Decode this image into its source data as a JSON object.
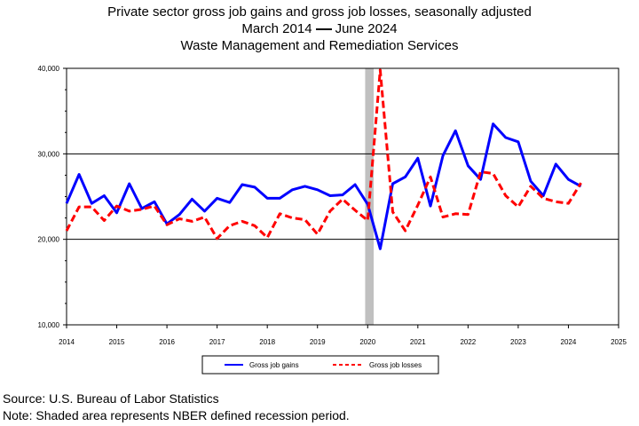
{
  "chart_data": {
    "type": "line",
    "title": "Private sector gross job gains and gross job losses, seasonally adjusted",
    "subtitle_start": "March 2014",
    "subtitle_end": "June 2024",
    "subtitle2": "Waste Management and Remediation Services",
    "xlabel": "",
    "ylabel": "",
    "xlim": [
      2014,
      2025
    ],
    "ylim": [
      10000,
      40000
    ],
    "x_ticks": [
      "2014",
      "2015",
      "2016",
      "2017",
      "2018",
      "2019",
      "2020",
      "2021",
      "2022",
      "2023",
      "2024",
      "2025"
    ],
    "y_ticks": [
      "10,000",
      "20,000",
      "30,000",
      "40,000"
    ],
    "grid": "horizontal",
    "legend_position": "bottom",
    "recession": {
      "start": 2019.95,
      "end": 2020.12
    },
    "x": [
      2014.0,
      2014.25,
      2014.5,
      2014.75,
      2015.0,
      2015.25,
      2015.5,
      2015.75,
      2016.0,
      2016.25,
      2016.5,
      2016.75,
      2017.0,
      2017.25,
      2017.5,
      2017.75,
      2018.0,
      2018.25,
      2018.5,
      2018.75,
      2019.0,
      2019.25,
      2019.5,
      2019.75,
      2020.0,
      2020.25,
      2020.5,
      2020.75,
      2021.0,
      2021.25,
      2021.5,
      2021.75,
      2022.0,
      2022.25,
      2022.5,
      2022.75,
      2023.0,
      2023.25,
      2023.5,
      2023.75,
      2024.0,
      2024.25
    ],
    "series": [
      {
        "name": "Gross job gains",
        "color": "#0000ff",
        "style": "solid",
        "values": [
          24200,
          27600,
          24200,
          25100,
          23100,
          26500,
          23600,
          24400,
          21800,
          22900,
          24700,
          23300,
          24800,
          24300,
          26400,
          26100,
          24800,
          24800,
          25800,
          26200,
          25800,
          25100,
          25200,
          26400,
          24100,
          18900,
          26500,
          27300,
          29500,
          23900,
          29800,
          32700,
          28600,
          27000,
          33500,
          31900,
          31400,
          26800,
          25100,
          28800,
          27000,
          26200
        ]
      },
      {
        "name": "Gross job losses",
        "color": "#ff0000",
        "style": "dashed",
        "values": [
          21000,
          23800,
          23800,
          22200,
          23900,
          23300,
          23500,
          23900,
          21700,
          22400,
          22100,
          22600,
          20100,
          21600,
          22100,
          21600,
          20200,
          23000,
          22500,
          22300,
          20600,
          23300,
          24700,
          23400,
          22200,
          39800,
          23200,
          21000,
          24000,
          27300,
          22600,
          23000,
          22900,
          27900,
          27700,
          25100,
          23800,
          26200,
          24800,
          24400,
          24200,
          26600
        ]
      }
    ]
  },
  "source": "Source: U.S. Bureau of Labor Statistics",
  "note": "Note: Shaded area represents NBER defined recession period."
}
